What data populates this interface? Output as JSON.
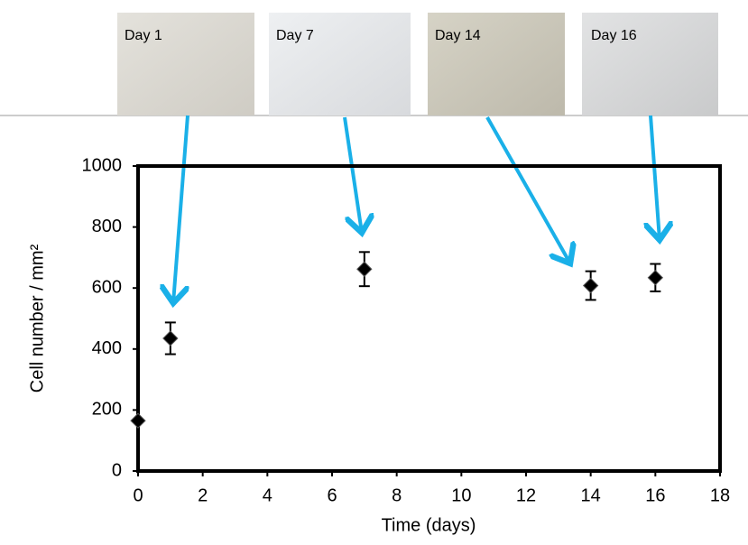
{
  "panels": [
    {
      "label": "Day 1"
    },
    {
      "label": "Day 7"
    },
    {
      "label": "Day 14"
    },
    {
      "label": "Day 16"
    }
  ],
  "chart_data": {
    "type": "scatter",
    "x_label": "Time (days)",
    "y_label": "Cell number / mm²",
    "x": [
      0,
      1,
      7,
      14,
      16
    ],
    "values": [
      165,
      435,
      662,
      608,
      634
    ],
    "errors": [
      null,
      52,
      56,
      47,
      45
    ],
    "color": "#000000",
    "xlim": [
      0,
      18
    ],
    "xticks": [
      0,
      2,
      4,
      6,
      8,
      10,
      12,
      14,
      16,
      18
    ],
    "ylim": [
      0,
      1000
    ],
    "yticks": [
      0,
      200,
      400,
      600,
      800,
      1000
    ]
  }
}
